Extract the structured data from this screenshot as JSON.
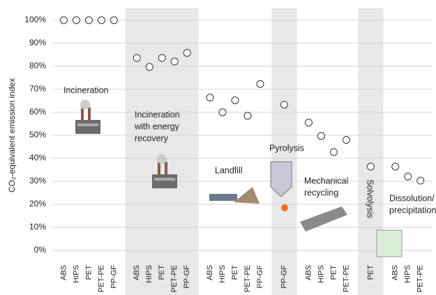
{
  "chart_data": {
    "type": "scatter",
    "ylabel": "CO₂-equivalent emission index",
    "ylim": [
      0,
      100
    ],
    "yticks": [
      {
        "value": 0,
        "label": "0%"
      },
      {
        "value": 10,
        "label": "10%"
      },
      {
        "value": 20,
        "label": "20%"
      },
      {
        "value": 30,
        "label": "30%"
      },
      {
        "value": 40,
        "label": "40%"
      },
      {
        "value": 50,
        "label": "50%"
      },
      {
        "value": 60,
        "label": "60%"
      },
      {
        "value": 70,
        "label": "70%"
      },
      {
        "value": 80,
        "label": "80%"
      },
      {
        "value": 90,
        "label": "90%"
      },
      {
        "value": 100,
        "label": "100%"
      }
    ],
    "grid": true,
    "groups": [
      {
        "label": [
          "Incineration"
        ],
        "categories": [
          "ABS",
          "HIPS",
          "PET",
          "PET-PE",
          "PP-GF"
        ],
        "values": [
          100,
          100,
          100,
          100,
          100
        ]
      },
      {
        "label": [
          "Incineration",
          "with energy",
          "recovery"
        ],
        "categories": [
          "ABS",
          "HIPS",
          "PET",
          "PET-PE",
          "PP-GF"
        ],
        "values": [
          83.6,
          79.7,
          83.6,
          82.1,
          85.8
        ]
      },
      {
        "label": [
          "Landfill"
        ],
        "categories": [
          "ABS",
          "HIPS",
          "PET",
          "PET-PE",
          "PP-GF"
        ],
        "values": [
          66.4,
          60,
          65.2,
          58.5,
          72.3
        ]
      },
      {
        "label": [
          "Pyrolysis"
        ],
        "categories": [
          "PP-GF"
        ],
        "values": [
          63.3
        ]
      },
      {
        "label": [
          "Mechanical",
          "recycling"
        ],
        "categories": [
          "ABS",
          "HIPS",
          "PET",
          "PET-PE"
        ],
        "values": [
          55.5,
          49.7,
          42.7,
          48
        ]
      },
      {
        "label": [
          "Solvolysis"
        ],
        "categories": [
          "PET"
        ],
        "values": [
          36.4
        ]
      },
      {
        "label": [
          "Dissolution/",
          "precipitation"
        ],
        "categories": [
          "ABS",
          "HIPS",
          "PET-PE"
        ],
        "values": [
          36.4,
          32.1,
          30.3
        ]
      }
    ]
  }
}
